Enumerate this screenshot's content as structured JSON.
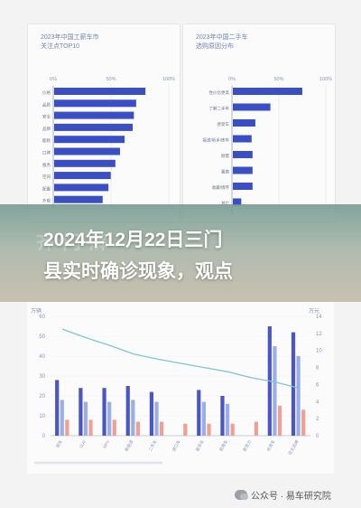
{
  "left_panel": {
    "title": "2023年中国工薪车市\n关注点TOP10",
    "axis_ticks": [
      "0%",
      "50%",
      "100%"
    ]
  },
  "right_panel": {
    "title": "2023年中国二手车\n选购原因分布",
    "axis_ticks": [
      "0%",
      "50%",
      "100%"
    ]
  },
  "headline": "2024年12月22日三门\n县实时确诊现象，观点",
  "ghost_text": "齐       门       解",
  "bottom_chart": {
    "left_unit": "万辆",
    "right_unit": "万元",
    "left_ticks": [
      "60",
      "50",
      "40",
      "30",
      "20",
      "10",
      "0"
    ],
    "right_ticks": [
      "14",
      "12",
      "10",
      "8",
      "6",
      "4",
      "2",
      "0"
    ]
  },
  "footer": {
    "text": "公众号 · 易车研究院"
  },
  "chart_data": [
    {
      "type": "bar",
      "title": "2023年中国工薪车市关注点TOP10",
      "categories": [
        "价格",
        "品质",
        "安全",
        "品牌",
        "能耗",
        "口碑",
        "服务",
        "空间",
        "配置",
        "外观"
      ],
      "values": [
        0.79,
        0.71,
        0.69,
        0.68,
        0.61,
        0.57,
        0.53,
        0.49,
        0.47,
        0.42
      ],
      "xlim": [
        0,
        1
      ],
      "color": "#3a4fc4"
    },
    {
      "type": "bar",
      "title": "2023年中国二手车选购原因分布",
      "categories": [
        "性价比更高",
        "了解二手车",
        "感受车",
        "接送/新手/练车",
        "刚需",
        "置换",
        "收藏/情怀",
        "其它"
      ],
      "values": [
        0.74,
        0.4,
        0.24,
        0.2,
        0.21,
        0.21,
        0.21,
        0.09
      ],
      "xlim": [
        0,
        1
      ],
      "color": "#3a4fc4"
    },
    {
      "type": "bar",
      "categories": [
        "轿车",
        "SUV",
        "MPV",
        "新能源",
        "二手车",
        "进口车",
        "豪华车",
        "商用车",
        "新势力",
        "合资车",
        "自主品牌"
      ],
      "series": [
        {
          "values": [
            28,
            24,
            24,
            25,
            22,
            0,
            23,
            20,
            0,
            55,
            52
          ],
          "color": "#4a55c8"
        },
        {
          "values": [
            18,
            17,
            17,
            18,
            17,
            0,
            17,
            16,
            0,
            45,
            40
          ],
          "color": "#9aaee8"
        },
        {
          "values": [
            8,
            8,
            8,
            7,
            7,
            6,
            6,
            6,
            7,
            15,
            13
          ],
          "color": "#f0a090"
        }
      ],
      "line": {
        "values": [
          12.5,
          11.5,
          10.6,
          9.6,
          9.0,
          8.5,
          8.0,
          7.5,
          6.8,
          6.3,
          5.6
        ],
        "color": "#7ec6d6"
      },
      "ylim": [
        0,
        60
      ],
      "y2lim": [
        0,
        14
      ]
    }
  ]
}
